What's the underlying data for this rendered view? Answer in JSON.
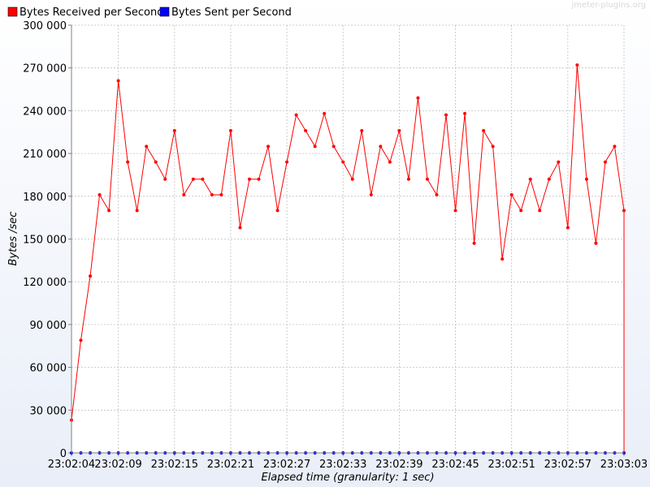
{
  "watermark": "jmeter-plugins.org",
  "colors": {
    "background_gradient_top": "#ffffff",
    "background_gradient_bottom": "#e9eef8",
    "plot_background": "#ffffff",
    "grid": "#c0c0c0",
    "series_received": "#ff0000",
    "series_sent": "#0000ff"
  },
  "chart_data": {
    "type": "line",
    "xlabel": "Elapsed time (granularity: 1 sec)",
    "ylabel": "Bytes /sec",
    "ylim": [
      0,
      300000
    ],
    "yticks": [
      0,
      30000,
      60000,
      90000,
      120000,
      150000,
      180000,
      210000,
      240000,
      270000,
      300000
    ],
    "ytick_labels": [
      "0",
      "30 000",
      "60 000",
      "90 000",
      "120 000",
      "150 000",
      "180 000",
      "210 000",
      "240 000",
      "270 000",
      "300 000"
    ],
    "xlim": [
      "23:02:04",
      "23:03:03"
    ],
    "xticks": [
      "23:02:04",
      "23:02:09",
      "23:02:15",
      "23:02:21",
      "23:02:27",
      "23:02:33",
      "23:02:39",
      "23:02:45",
      "23:02:51",
      "23:02:57",
      "23:03:03"
    ],
    "grid": true,
    "legend_position": "top-left",
    "x": [
      "23:02:04",
      "23:02:05",
      "23:02:06",
      "23:02:07",
      "23:02:08",
      "23:02:09",
      "23:02:10",
      "23:02:11",
      "23:02:12",
      "23:02:13",
      "23:02:14",
      "23:02:15",
      "23:02:16",
      "23:02:17",
      "23:02:18",
      "23:02:19",
      "23:02:20",
      "23:02:21",
      "23:02:22",
      "23:02:23",
      "23:02:24",
      "23:02:25",
      "23:02:26",
      "23:02:27",
      "23:02:28",
      "23:02:29",
      "23:02:30",
      "23:02:31",
      "23:02:32",
      "23:02:33",
      "23:02:34",
      "23:02:35",
      "23:02:36",
      "23:02:37",
      "23:02:38",
      "23:02:39",
      "23:02:40",
      "23:02:41",
      "23:02:42",
      "23:02:43",
      "23:02:44",
      "23:02:45",
      "23:02:46",
      "23:02:47",
      "23:02:48",
      "23:02:49",
      "23:02:50",
      "23:02:51",
      "23:02:52",
      "23:02:53",
      "23:02:54",
      "23:02:55",
      "23:02:56",
      "23:02:57",
      "23:02:58",
      "23:02:59",
      "23:03:00",
      "23:03:01",
      "23:03:02",
      "23:03:03"
    ],
    "series": [
      {
        "name": "Bytes Received per Second",
        "color": "#ff0000",
        "values": [
          23000,
          79000,
          124000,
          181000,
          170000,
          261000,
          204000,
          170000,
          215000,
          204000,
          192000,
          226000,
          181000,
          192000,
          192000,
          181000,
          181000,
          226000,
          158000,
          192000,
          192000,
          215000,
          170000,
          204000,
          237000,
          226000,
          215000,
          238000,
          215000,
          204000,
          192000,
          226000,
          181000,
          215000,
          204000,
          226000,
          192000,
          249000,
          192000,
          181000,
          237000,
          170000,
          238000,
          147000,
          226000,
          215000,
          136000,
          181000,
          170000,
          192000,
          170000,
          192000,
          204000,
          158000,
          272000,
          192000,
          147000,
          204000,
          215000,
          170000
        ]
      },
      {
        "name": "Bytes Sent per Second",
        "color": "#0000ff",
        "values": [
          0,
          0,
          0,
          0,
          0,
          0,
          0,
          0,
          0,
          0,
          0,
          0,
          0,
          0,
          0,
          0,
          0,
          0,
          0,
          0,
          0,
          0,
          0,
          0,
          0,
          0,
          0,
          0,
          0,
          0,
          0,
          0,
          0,
          0,
          0,
          0,
          0,
          0,
          0,
          0,
          0,
          0,
          0,
          0,
          0,
          0,
          0,
          0,
          0,
          0,
          0,
          0,
          0,
          0,
          0,
          0,
          0,
          0,
          0,
          0
        ]
      }
    ]
  }
}
